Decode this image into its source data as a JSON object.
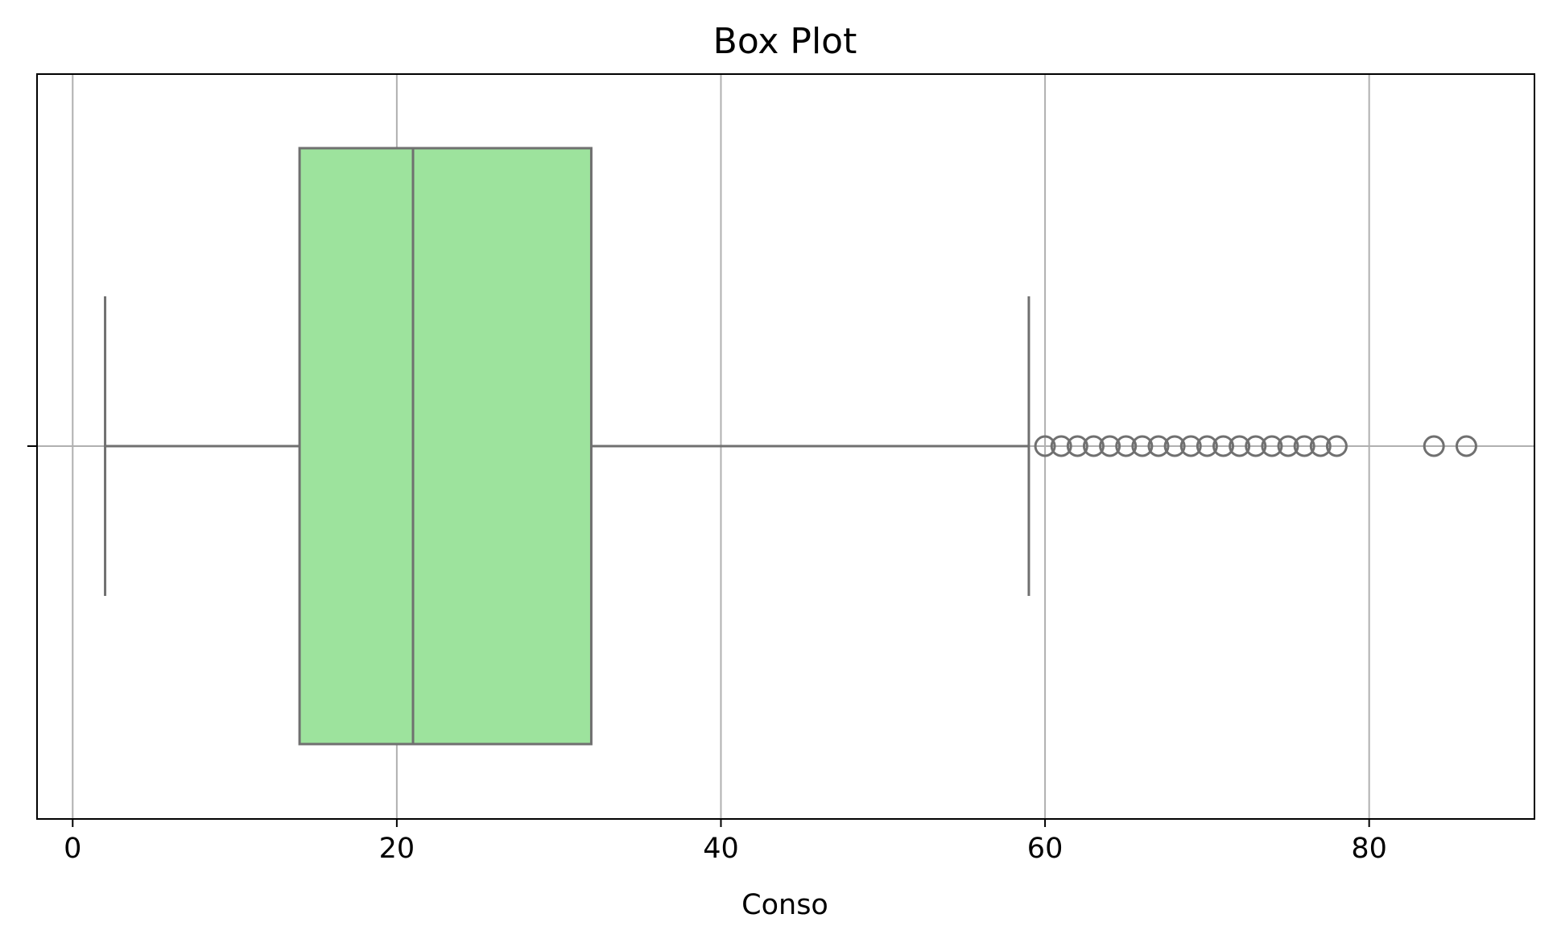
{
  "chart_data": {
    "type": "box",
    "title": "Box Plot",
    "xlabel": "Conso",
    "ylabel": "",
    "xlim": [
      -2.2,
      90.2
    ],
    "xticks": [
      0,
      20,
      40,
      60,
      80
    ],
    "grid": true,
    "orientation": "horizontal",
    "box": {
      "whisker_low": 2,
      "q1": 14,
      "median": 21,
      "q3": 32,
      "whisker_high": 59,
      "outliers": [
        60,
        61,
        62,
        63,
        64,
        65,
        66,
        67,
        68,
        69,
        70,
        71,
        72,
        73,
        74,
        75,
        76,
        77,
        78,
        84,
        86
      ]
    },
    "colors": {
      "box_fill": "#9de39d",
      "box_edge": "#707070",
      "grid": "#b0b0b0"
    }
  }
}
